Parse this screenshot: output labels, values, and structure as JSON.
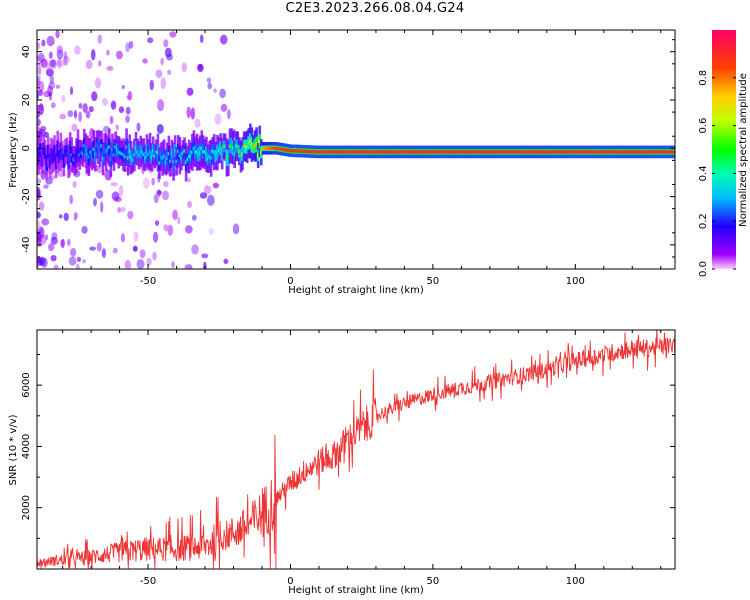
{
  "title": "C2E3.2023.266.08.04.G24",
  "colors": {
    "snr_line": "#ee3333",
    "axis": "#000000"
  },
  "chart_data": [
    {
      "type": "heatmap",
      "name": "spectrogram",
      "xlabel": "Height of straight line (km)",
      "ylabel": "Frequency (Hz)",
      "xlim": [
        -89,
        135
      ],
      "ylim": [
        -50,
        49
      ],
      "xticks": [
        -50,
        0,
        50,
        100
      ],
      "yticks": [
        -40,
        -20,
        0,
        20,
        40
      ],
      "colorbar": {
        "label": "Normalized spectral amplitude",
        "range": [
          0.0,
          1.0
        ],
        "ticks": [
          0.0,
          0.2,
          0.4,
          0.6,
          0.8
        ],
        "colormap": "gist_rainbow"
      },
      "ridge": {
        "x": [
          -89,
          -80,
          -70,
          -60,
          -50,
          -40,
          -30,
          -20,
          -15,
          -10,
          -5,
          0,
          10,
          30,
          60,
          100,
          135
        ],
        "frequency": [
          -3,
          -3,
          -1,
          -2,
          -3,
          -4,
          -2,
          -1,
          0,
          0,
          0,
          -1,
          -1.5,
          -1.5,
          -1.5,
          -1.5,
          -1.5
        ],
        "amplitude": [
          0.15,
          0.2,
          0.3,
          0.35,
          0.35,
          0.35,
          0.4,
          0.45,
          0.6,
          0.75,
          0.85,
          0.9,
          0.9,
          0.9,
          0.9,
          0.9,
          0.9
        ]
      }
    },
    {
      "type": "line",
      "name": "snr",
      "xlabel": "Height of straight line (km)",
      "ylabel": "SNR (10 * v/v)",
      "xlim": [
        -89,
        135
      ],
      "ylim": [
        0,
        7800
      ],
      "xticks": [
        -50,
        0,
        50,
        100
      ],
      "yticks": [
        2000,
        4000,
        6000
      ],
      "series": [
        {
          "x": [
            -89,
            -80,
            -70,
            -60,
            -50,
            -40,
            -30,
            -25,
            -20,
            -15,
            -10,
            -5,
            0,
            5,
            10,
            15,
            20,
            25,
            30,
            40,
            50,
            60,
            70,
            80,
            90,
            100,
            110,
            120,
            125,
            135
          ],
          "values": [
            200,
            300,
            400,
            550,
            650,
            650,
            750,
            1000,
            1200,
            1400,
            1800,
            2300,
            2800,
            3200,
            3500,
            3700,
            4200,
            4600,
            5000,
            5400,
            5700,
            5900,
            6100,
            6300,
            6500,
            6800,
            7000,
            7200,
            7200,
            7300
          ]
        }
      ]
    }
  ]
}
